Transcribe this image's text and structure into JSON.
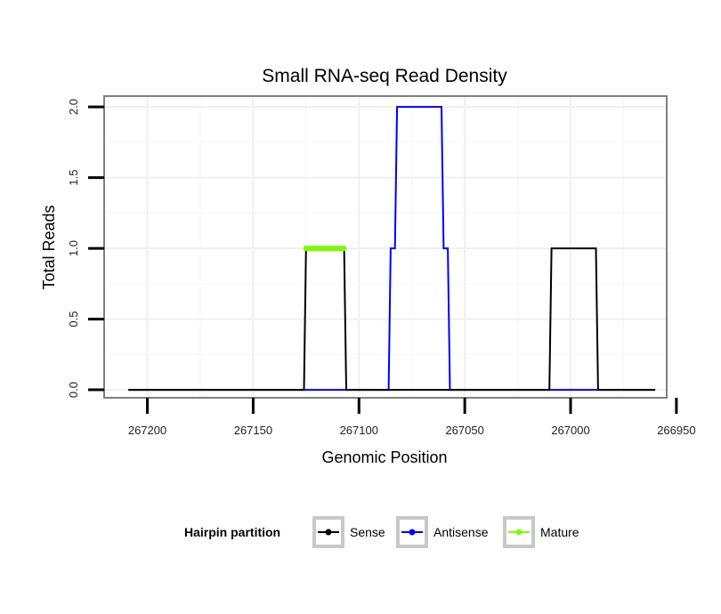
{
  "chart_data": {
    "type": "line",
    "title": "Small RNA-seq Read Density",
    "xlabel": "Genomic Position",
    "ylabel": "Total Reads",
    "xlim": [
      267220,
      266955
    ],
    "ylim": [
      -0.05,
      2.07
    ],
    "x_reversed": true,
    "x_ticks": [
      267200,
      267150,
      267100,
      267050,
      267000,
      266950
    ],
    "x_tick_labels": [
      "267200",
      "267150",
      "267100",
      "267050",
      "267000",
      "266950"
    ],
    "y_ticks": [
      0,
      0.5,
      1,
      1.5,
      2
    ],
    "y_tick_labels": [
      "0.0",
      "0.5",
      "1.0",
      "1.5",
      "2.0"
    ],
    "grid": true,
    "legend_position": "bottom",
    "legend_title": "Hairpin partition",
    "series": [
      {
        "name": "Sense",
        "color": "#000000",
        "x": [
          267209,
          267126,
          267125,
          267107,
          267106,
          267010,
          267009,
          266988,
          266987,
          266960
        ],
        "y": [
          0,
          0,
          1,
          1,
          0,
          0,
          1,
          1,
          0,
          0
        ]
      },
      {
        "name": "Antisense",
        "color": "#0000ff",
        "x": [
          267209,
          267086,
          267085,
          267083,
          267082,
          267061,
          267060,
          267058,
          267057,
          266960
        ],
        "y": [
          0,
          0,
          1,
          1,
          2,
          2,
          1,
          1,
          0,
          0
        ]
      },
      {
        "name": "Mature",
        "color": "#7cfc00",
        "x": [
          267125,
          267107
        ],
        "y": [
          1,
          1
        ]
      }
    ]
  }
}
